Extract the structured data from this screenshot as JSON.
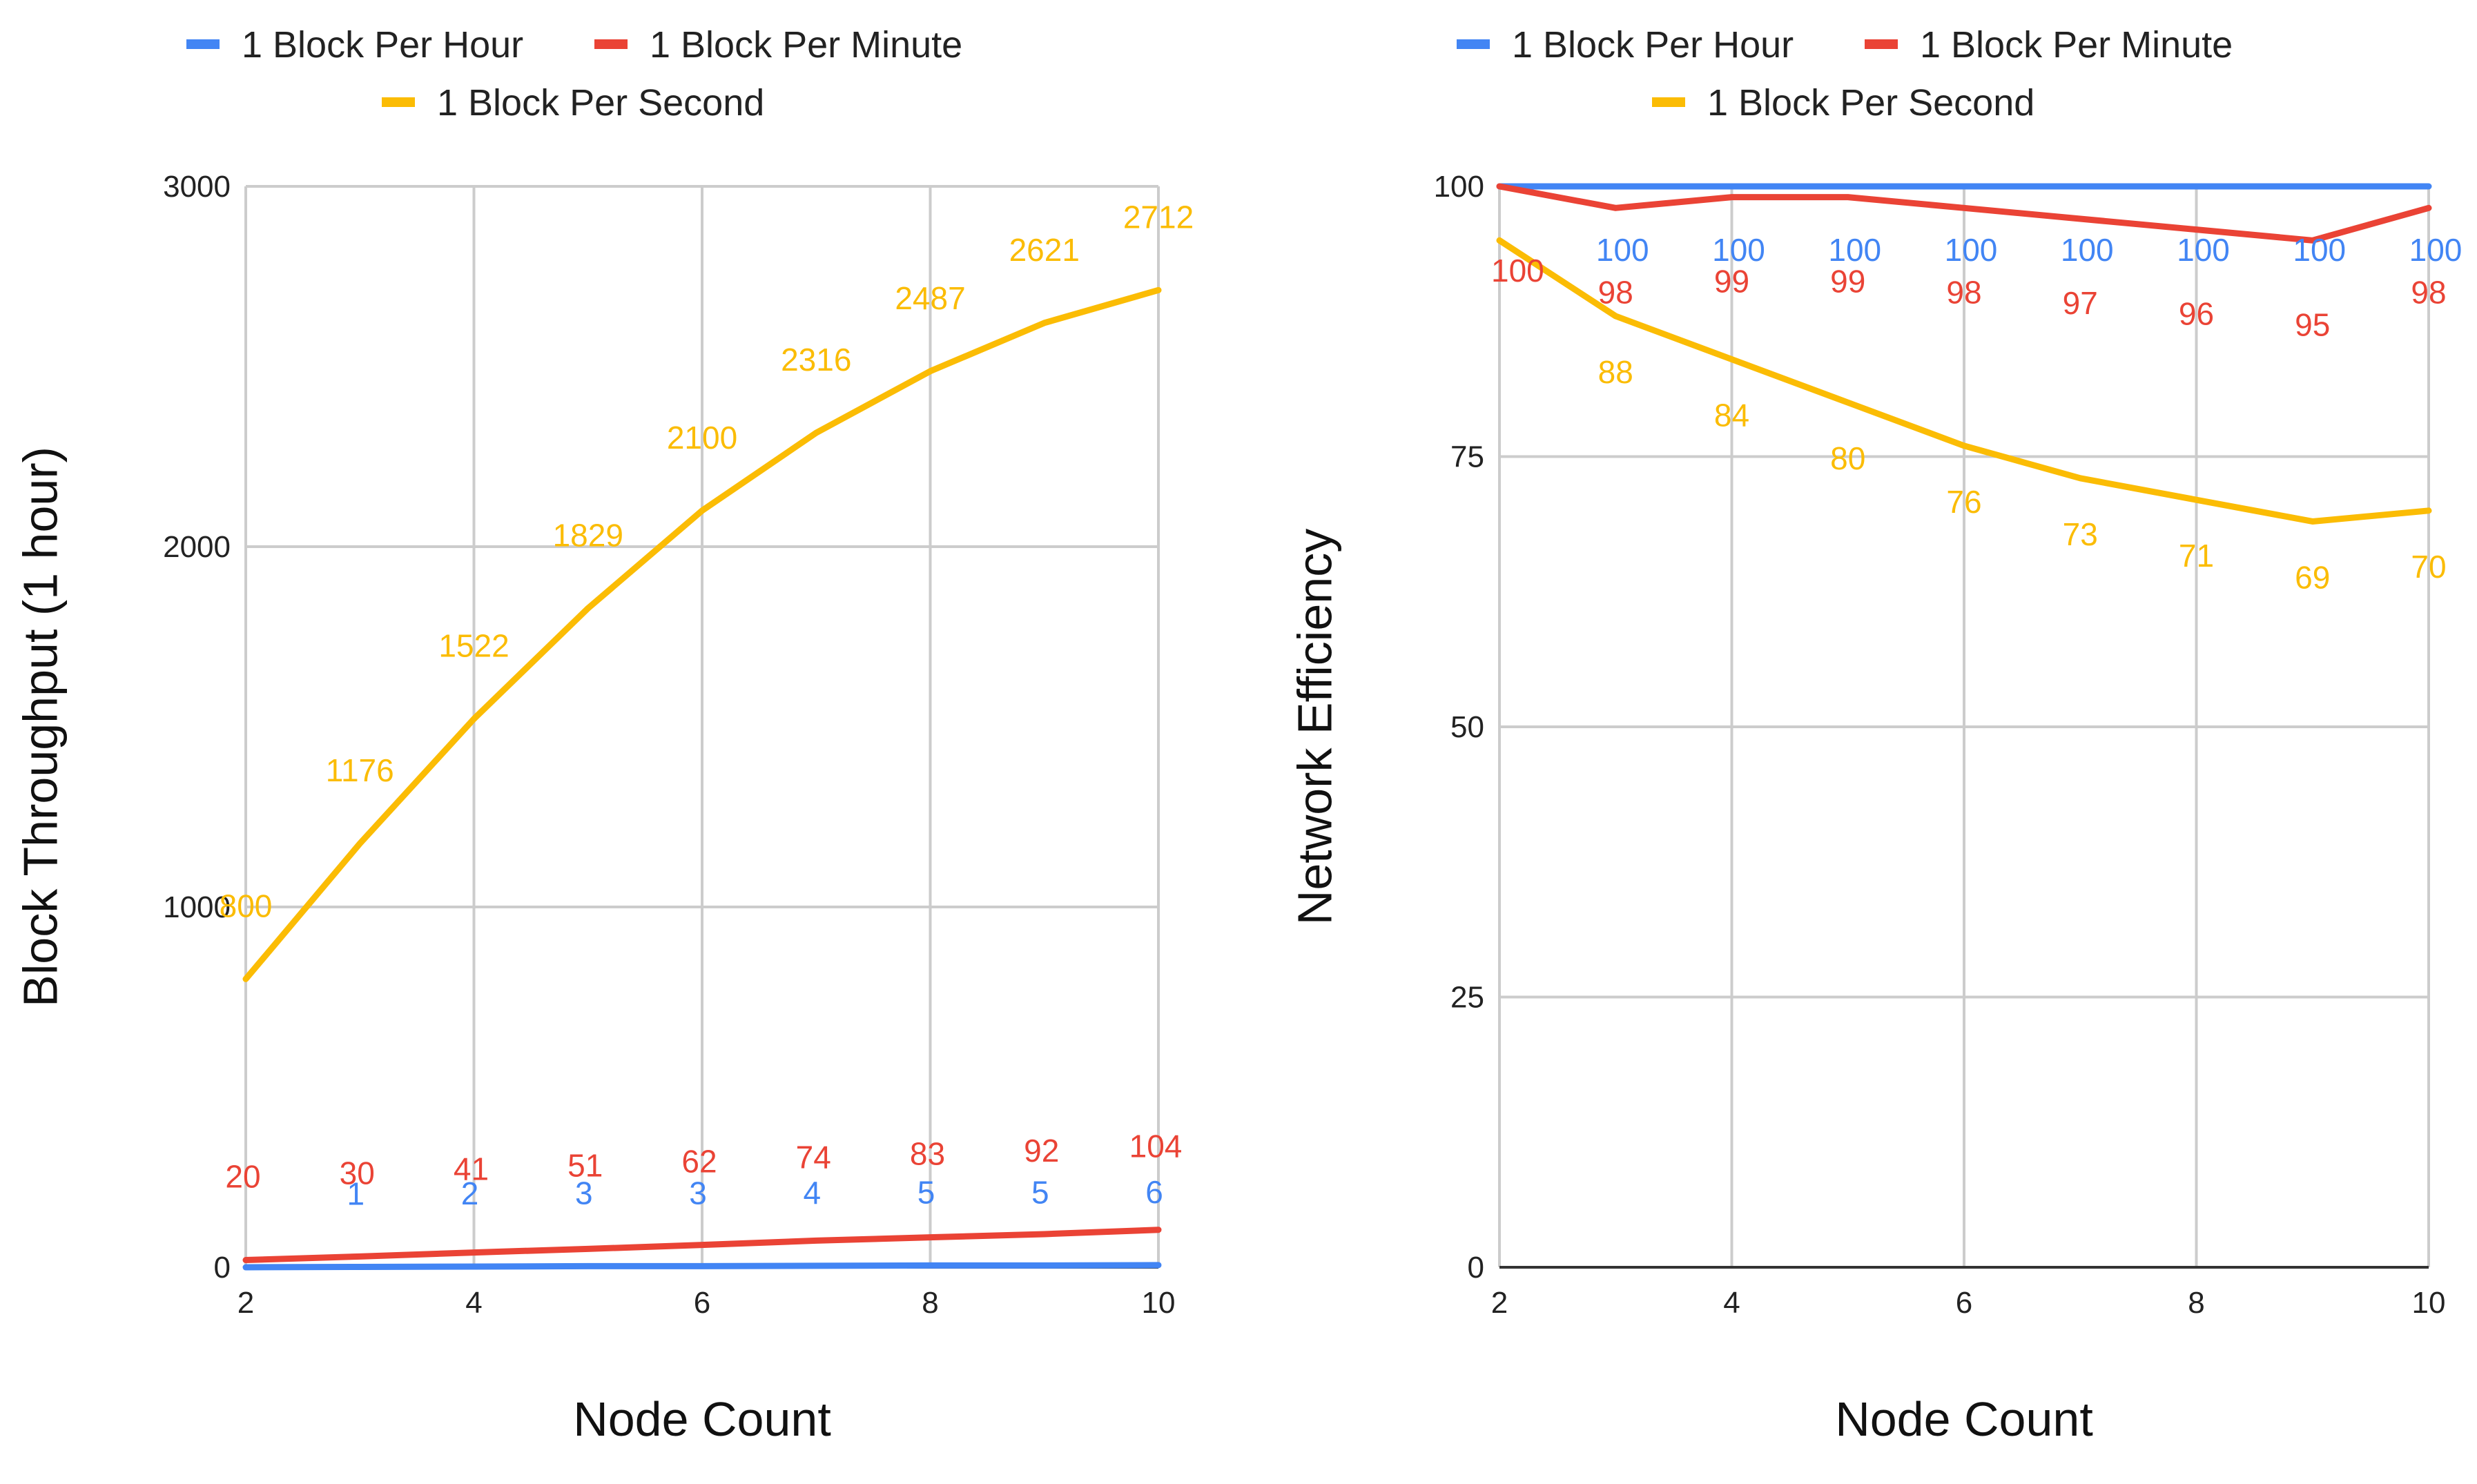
{
  "chart_data": [
    {
      "type": "line",
      "title": "",
      "xlabel": "Node Count",
      "ylabel": "Block Throughput (1 hour)",
      "x": [
        2,
        3,
        4,
        5,
        6,
        7,
        8,
        9,
        10
      ],
      "xlim": [
        2,
        10
      ],
      "ylim": [
        0,
        3000
      ],
      "xticks": [
        "2",
        "4",
        "6",
        "8",
        "10"
      ],
      "yticks": [
        "0",
        "1000",
        "2000",
        "3000"
      ],
      "grid": true,
      "legend_position": "top",
      "series": [
        {
          "name": "1 Block Per Hour",
          "color": "#4285F4",
          "values": [
            0,
            1,
            2,
            3,
            3,
            4,
            5,
            5,
            6
          ],
          "labels": [
            "",
            "1",
            "2",
            "3",
            "3",
            "4",
            "5",
            "5",
            "6"
          ]
        },
        {
          "name": "1 Block Per Minute",
          "color": "#EA4335",
          "values": [
            20,
            30,
            41,
            51,
            62,
            74,
            83,
            92,
            104
          ],
          "labels": [
            "20",
            "30",
            "41",
            "51",
            "62",
            "74",
            "83",
            "92",
            "104"
          ]
        },
        {
          "name": "1 Block Per Second",
          "color": "#FBBC04",
          "values": [
            800,
            1176,
            1522,
            1829,
            2100,
            2316,
            2487,
            2621,
            2712
          ],
          "labels": [
            "800",
            "1176",
            "1522",
            "1829",
            "2100",
            "2316",
            "2487",
            "2621",
            "2712"
          ]
        }
      ]
    },
    {
      "type": "line",
      "title": "",
      "xlabel": "Node Count",
      "ylabel": "Network Efficiency",
      "x": [
        2,
        3,
        4,
        5,
        6,
        7,
        8,
        9,
        10
      ],
      "xlim": [
        2,
        10
      ],
      "ylim": [
        0,
        100
      ],
      "xticks": [
        "2",
        "4",
        "6",
        "8",
        "10"
      ],
      "yticks": [
        "0",
        "25",
        "50",
        "75",
        "100"
      ],
      "grid": true,
      "legend_position": "top",
      "series": [
        {
          "name": "1 Block Per Hour",
          "color": "#4285F4",
          "values": [
            100,
            100,
            100,
            100,
            100,
            100,
            100,
            100,
            100
          ],
          "labels": [
            "",
            "100",
            "100",
            "100",
            "100",
            "100",
            "100",
            "100",
            "100"
          ]
        },
        {
          "name": "1 Block Per Minute",
          "color": "#EA4335",
          "values": [
            100,
            98,
            99,
            99,
            98,
            97,
            96,
            95,
            98
          ],
          "labels": [
            "100",
            "98",
            "99",
            "99",
            "98",
            "97",
            "96",
            "95",
            "98"
          ]
        },
        {
          "name": "1 Block Per Second",
          "color": "#FBBC04",
          "values": [
            95,
            88,
            84,
            80,
            76,
            73,
            71,
            69,
            70
          ],
          "labels": [
            "",
            "88",
            "84",
            "80",
            "76",
            "73",
            "71",
            "69",
            "70"
          ]
        }
      ]
    }
  ]
}
